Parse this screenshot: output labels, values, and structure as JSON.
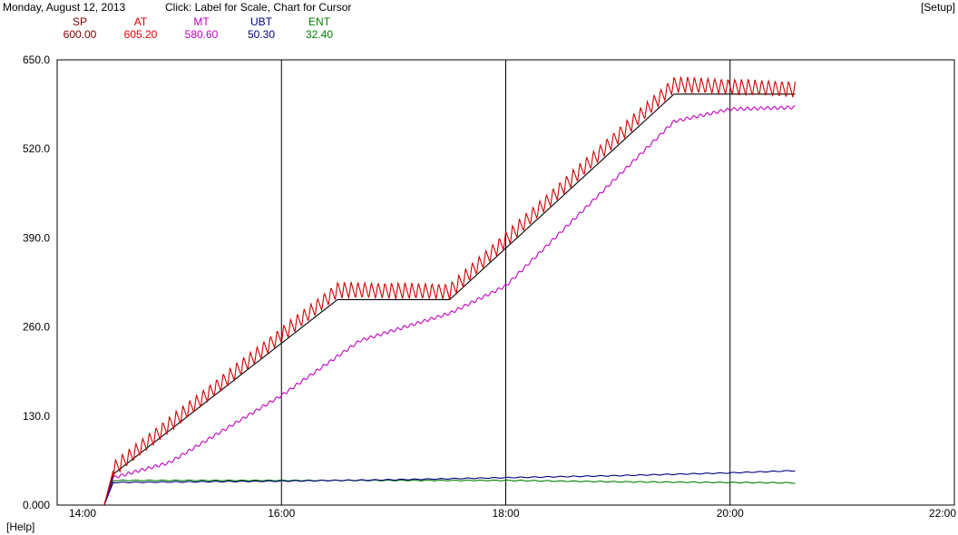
{
  "header": {
    "date": "Monday, August 12, 2013",
    "instruction": "Click: Label for Scale, Chart for Cursor",
    "setup": "[Setup]"
  },
  "footer": {
    "help": "[Help]"
  },
  "legend": [
    {
      "name": "SP",
      "value": "600.00",
      "color": "#800000"
    },
    {
      "name": "AT",
      "value": "605.20",
      "color": "#e00000"
    },
    {
      "name": "MT",
      "value": "580.60",
      "color": "#c000c0"
    },
    {
      "name": "UBT",
      "value": "50.30",
      "color": "#000080"
    },
    {
      "name": "ENT",
      "value": "32.40",
      "color": "#008000"
    }
  ],
  "chart_data": {
    "type": "line",
    "xlim": [
      14,
      22
    ],
    "ylim": [
      0,
      650
    ],
    "x_ticks": [
      "14:00",
      "16:00",
      "18:00",
      "20:00",
      "22:00"
    ],
    "y_ticks": [
      "0.000",
      "130.0",
      "260.0",
      "390.0",
      "520.0",
      "650.0"
    ],
    "grid": "vertical",
    "series": [
      {
        "name": "SP",
        "color": "#000000",
        "x": [
          14.42,
          14.5,
          16.5,
          17.5,
          19.5,
          20.58
        ],
        "y": [
          0,
          45,
          300,
          300,
          600,
          600
        ]
      },
      {
        "name": "AT",
        "color": "#d00000",
        "x": [
          14.42,
          14.5,
          16.5,
          17.5,
          19.5,
          20.58
        ],
        "y": [
          0,
          50,
          312,
          310,
          612,
          605.2
        ]
      },
      {
        "name": "MT",
        "color": "#c000c0",
        "x": [
          14.42,
          14.5,
          15.0,
          16.0,
          16.7,
          17.5,
          18.0,
          19.5,
          20.0,
          20.58
        ],
        "y": [
          0,
          40,
          62,
          160,
          240,
          280,
          320,
          560,
          578,
          580.6
        ]
      },
      {
        "name": "UBT",
        "color": "#000080",
        "x": [
          14.42,
          14.5,
          16.0,
          17.0,
          18.0,
          19.0,
          20.0,
          20.58
        ],
        "y": [
          0,
          33,
          35,
          37,
          40,
          43,
          47,
          50.3
        ]
      },
      {
        "name": "ENT",
        "color": "#008000",
        "x": [
          14.42,
          14.5,
          16.0,
          17.0,
          18.0,
          19.0,
          20.0,
          20.58
        ],
        "y": [
          0,
          36,
          36,
          36,
          36,
          34,
          33,
          32.4
        ]
      }
    ]
  }
}
